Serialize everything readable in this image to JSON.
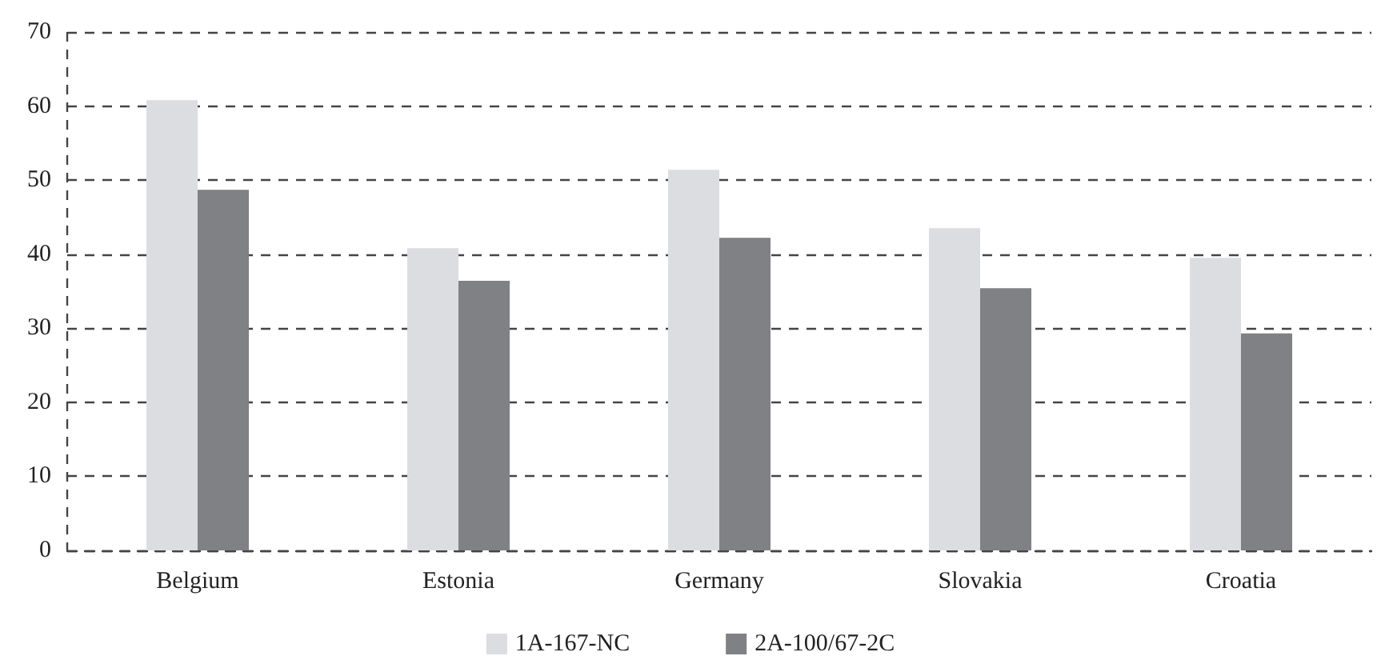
{
  "chart_data": {
    "type": "bar",
    "categories": [
      "Belgium",
      "Estonia",
      "Germany",
      "Slovakia",
      "Croatia"
    ],
    "series": [
      {
        "name": "1A-167-NC",
        "color": "#dcdde0",
        "values": [
          60.8,
          40.8,
          51.4,
          43.5,
          39.5
        ]
      },
      {
        "name": "2A-100/67-2C",
        "color": "#808185",
        "values": [
          48.7,
          36.4,
          42.2,
          35.4,
          29.3
        ]
      }
    ],
    "ylim": [
      0,
      70
    ],
    "yticks": [
      0,
      10,
      20,
      30,
      40,
      50,
      60,
      70
    ],
    "grid": "y",
    "legend": "bottom"
  }
}
